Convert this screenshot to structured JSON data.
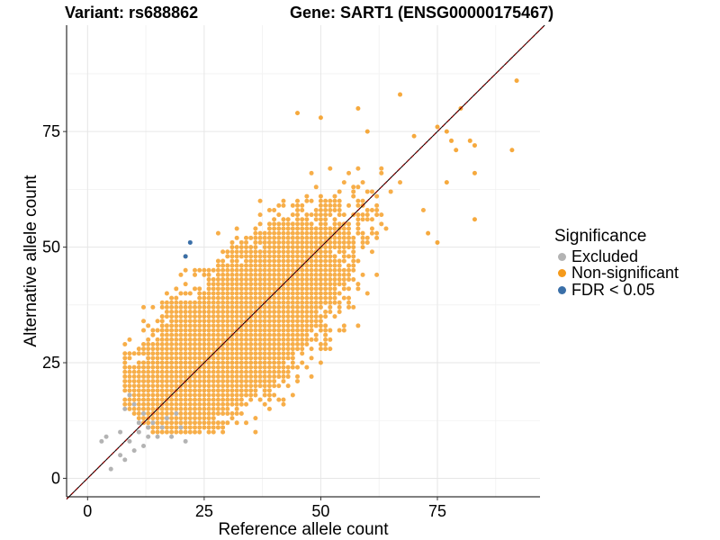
{
  "header": {
    "variant_label": "Variant: rs688862",
    "gene_label": "Gene: SART1 (ENSG00000175467)"
  },
  "legend": {
    "title": "Significance",
    "items": [
      {
        "label": "Excluded",
        "color": "#b3b3b3"
      },
      {
        "label": "Non-significant",
        "color": "#f59a1b"
      },
      {
        "label": "FDR < 0.05",
        "color": "#3a6fa8"
      }
    ]
  },
  "chart_data": {
    "type": "scatter",
    "xlabel": "Reference allele count",
    "ylabel": "Alternative allele count",
    "xlim": [
      -4.5,
      97
    ],
    "ylim": [
      -4,
      98
    ],
    "x_ticks": [
      0,
      25,
      50,
      75
    ],
    "y_ticks": [
      0,
      25,
      50,
      75
    ],
    "grid": true,
    "legend_position": "right",
    "reference_line": {
      "slope": 1,
      "intercept": 0,
      "style": "dashed",
      "colors": [
        "#8b0000",
        "#000000"
      ]
    },
    "series": [
      {
        "name": "Excluded",
        "color": "#b3b3b3",
        "points": [
          [
            3,
            8
          ],
          [
            4,
            9
          ],
          [
            5,
            2
          ],
          [
            7,
            5
          ],
          [
            8,
            4
          ],
          [
            9,
            8
          ],
          [
            10,
            6
          ],
          [
            11,
            10
          ],
          [
            12,
            7
          ],
          [
            13,
            9
          ],
          [
            14,
            12
          ],
          [
            15,
            9
          ],
          [
            16,
            11
          ],
          [
            17,
            13
          ],
          [
            18,
            9
          ],
          [
            19,
            14
          ],
          [
            20,
            11
          ],
          [
            21,
            8
          ],
          [
            8,
            15
          ],
          [
            9,
            18
          ],
          [
            10,
            16
          ],
          [
            11,
            12
          ],
          [
            12,
            14
          ],
          [
            13,
            11
          ],
          [
            7,
            10
          ]
        ]
      },
      {
        "name": "Non-significant",
        "color": "#f59a1b",
        "n_points": 1900,
        "mean": [
          32,
          32
        ],
        "sd": [
          9.5,
          9.5
        ],
        "correlation": 0.74,
        "x_range": [
          8,
          92
        ],
        "y_range": [
          10,
          86
        ],
        "points": [
          [
            92,
            86
          ],
          [
            91,
            71
          ],
          [
            83,
            66
          ],
          [
            83,
            56
          ],
          [
            75,
            51
          ],
          [
            67,
            83
          ],
          [
            50,
            78
          ],
          [
            45,
            79
          ],
          [
            58,
            80
          ],
          [
            60,
            75
          ],
          [
            77,
            75
          ],
          [
            78,
            73
          ],
          [
            79,
            71
          ],
          [
            80,
            80
          ],
          [
            75,
            76
          ],
          [
            70,
            74
          ],
          [
            82,
            73
          ],
          [
            83,
            72
          ],
          [
            77,
            64
          ],
          [
            73,
            53
          ]
        ]
      },
      {
        "name": "FDR < 0.05",
        "color": "#3a6fa8",
        "points": [
          [
            22,
            51
          ],
          [
            21,
            48
          ]
        ]
      }
    ]
  }
}
